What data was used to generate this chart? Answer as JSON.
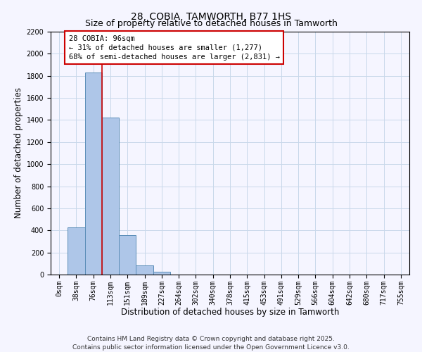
{
  "title": "28, COBIA, TAMWORTH, B77 1HS",
  "subtitle": "Size of property relative to detached houses in Tamworth",
  "xlabel": "Distribution of detached houses by size in Tamworth",
  "ylabel": "Number of detached properties",
  "bar_labels": [
    "0sqm",
    "38sqm",
    "76sqm",
    "113sqm",
    "151sqm",
    "189sqm",
    "227sqm",
    "264sqm",
    "302sqm",
    "340sqm",
    "378sqm",
    "415sqm",
    "453sqm",
    "491sqm",
    "529sqm",
    "566sqm",
    "604sqm",
    "642sqm",
    "680sqm",
    "717sqm",
    "755sqm"
  ],
  "bar_values": [
    0,
    430,
    1830,
    1420,
    360,
    80,
    25,
    0,
    0,
    0,
    0,
    0,
    0,
    0,
    0,
    0,
    0,
    0,
    0,
    0,
    0
  ],
  "bar_color": "#aec6e8",
  "bar_edge_color": "#5b8db8",
  "ylim": [
    0,
    2200
  ],
  "yticks": [
    0,
    200,
    400,
    600,
    800,
    1000,
    1200,
    1400,
    1600,
    1800,
    2000,
    2200
  ],
  "vline_color": "#cc0000",
  "annotation_title": "28 COBIA: 96sqm",
  "annotation_line1": "← 31% of detached houses are smaller (1,277)",
  "annotation_line2": "68% of semi-detached houses are larger (2,831) →",
  "annotation_box_color": "#ffffff",
  "annotation_box_edge_color": "#cc0000",
  "footer1": "Contains HM Land Registry data © Crown copyright and database right 2025.",
  "footer2": "Contains public sector information licensed under the Open Government Licence v3.0.",
  "bg_color": "#f5f5ff",
  "grid_color": "#c8d8ea",
  "title_fontsize": 10,
  "subtitle_fontsize": 9,
  "axis_label_fontsize": 8.5,
  "tick_fontsize": 7,
  "annotation_fontsize": 7.5,
  "footer_fontsize": 6.5
}
